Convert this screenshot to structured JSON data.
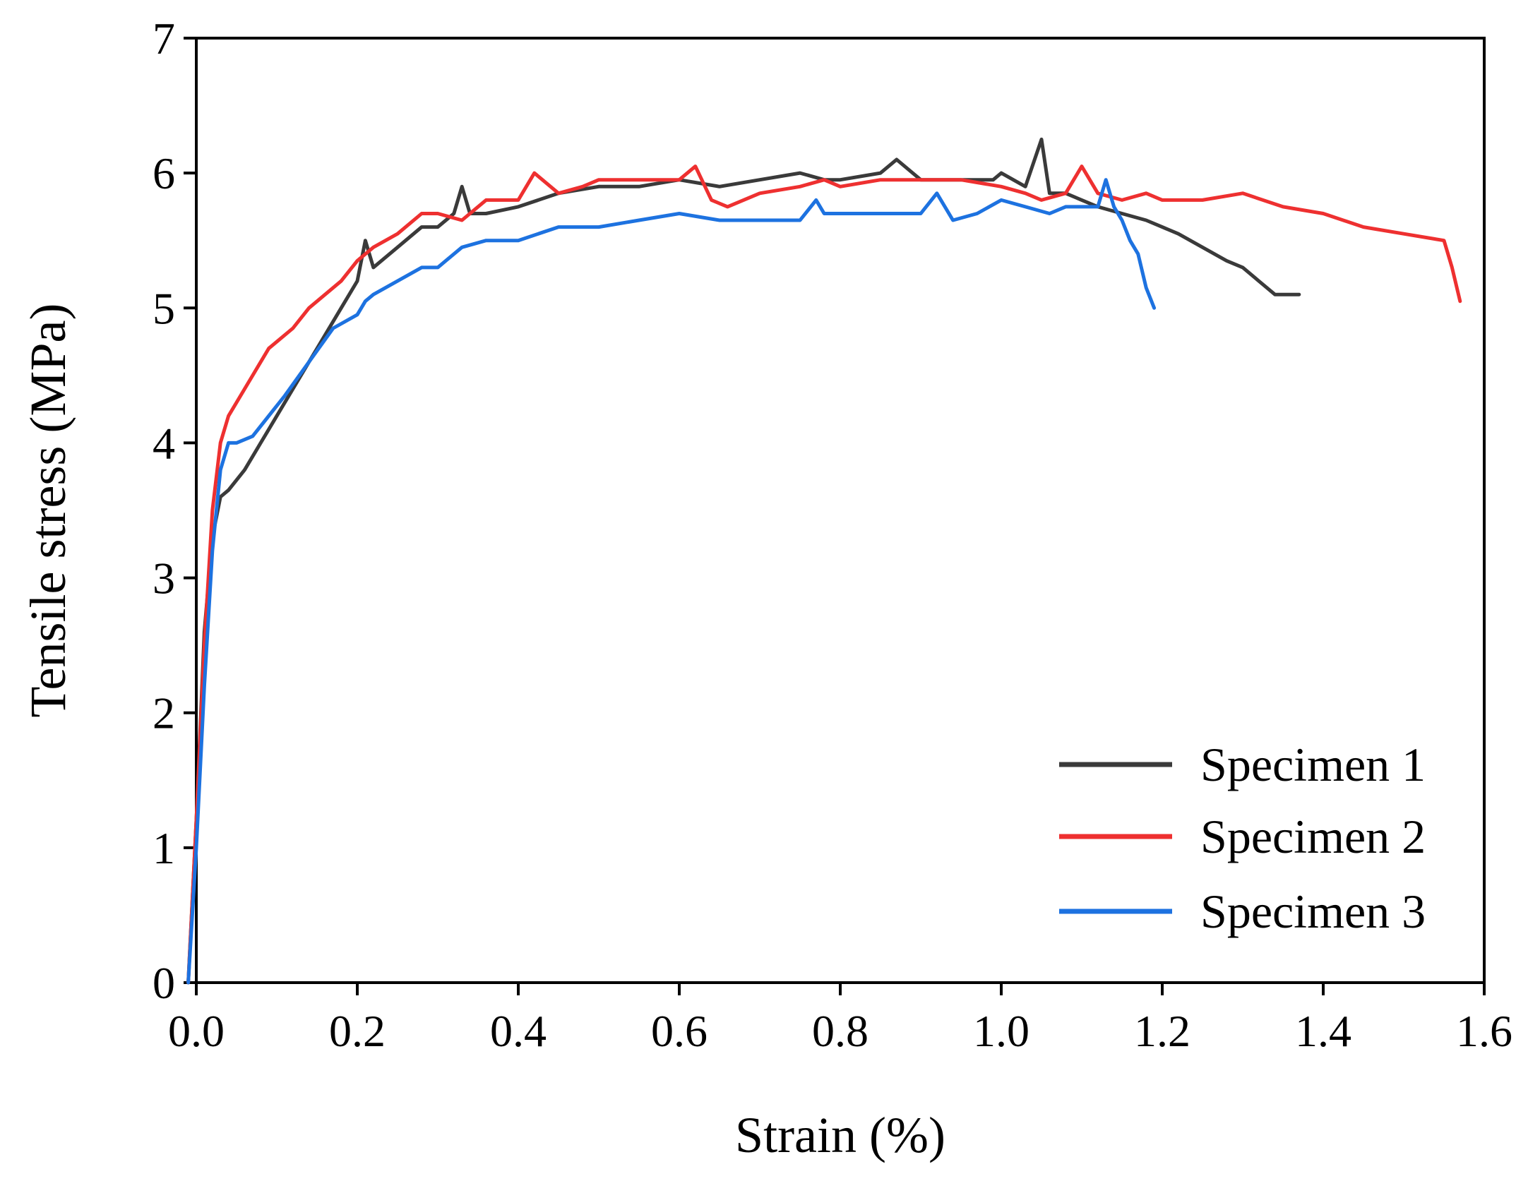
{
  "chart_data": {
    "type": "line",
    "title": "",
    "xlabel": "Strain (%)",
    "ylabel": "Tensile stress (MPa)",
    "xlim": [
      0.0,
      1.6
    ],
    "ylim": [
      0,
      7
    ],
    "xticks": [
      0.0,
      0.2,
      0.4,
      0.6,
      0.8,
      1.0,
      1.2,
      1.4,
      1.6
    ],
    "xtick_labels": [
      "0.0",
      "0.2",
      "0.4",
      "0.6",
      "0.8",
      "1.0",
      "1.2",
      "1.4",
      "1.6"
    ],
    "yticks": [
      0,
      1,
      2,
      3,
      4,
      5,
      6,
      7
    ],
    "ytick_labels": [
      "0",
      "1",
      "2",
      "3",
      "4",
      "5",
      "6",
      "7"
    ],
    "grid": false,
    "legend_position": "bottom-right",
    "series": [
      {
        "name": "Specimen 1",
        "color": "#3a3a3a",
        "x": [
          -0.01,
          0.0,
          0.01,
          0.02,
          0.03,
          0.04,
          0.06,
          0.08,
          0.1,
          0.12,
          0.15,
          0.18,
          0.2,
          0.21,
          0.22,
          0.25,
          0.28,
          0.3,
          0.32,
          0.33,
          0.34,
          0.36,
          0.4,
          0.45,
          0.5,
          0.55,
          0.6,
          0.65,
          0.7,
          0.75,
          0.78,
          0.8,
          0.85,
          0.87,
          0.9,
          0.95,
          0.99,
          1.0,
          1.03,
          1.05,
          1.06,
          1.08,
          1.1,
          1.12,
          1.15,
          1.18,
          1.2,
          1.22,
          1.25,
          1.28,
          1.3,
          1.32,
          1.34,
          1.36,
          1.37
        ],
        "y": [
          0,
          1.2,
          2.6,
          3.3,
          3.6,
          3.65,
          3.8,
          4.0,
          4.2,
          4.4,
          4.7,
          5.0,
          5.2,
          5.5,
          5.3,
          5.45,
          5.6,
          5.6,
          5.7,
          5.9,
          5.7,
          5.7,
          5.75,
          5.85,
          5.9,
          5.9,
          5.95,
          5.9,
          5.95,
          6.0,
          5.95,
          5.95,
          6.0,
          6.1,
          5.95,
          5.95,
          5.95,
          6.0,
          5.9,
          6.25,
          5.85,
          5.85,
          5.8,
          5.75,
          5.7,
          5.65,
          5.6,
          5.55,
          5.45,
          5.35,
          5.3,
          5.2,
          5.1,
          5.1,
          5.1
        ]
      },
      {
        "name": "Specimen 2",
        "color": "#ee3030",
        "x": [
          -0.01,
          0.0,
          0.01,
          0.02,
          0.03,
          0.04,
          0.05,
          0.07,
          0.09,
          0.1,
          0.12,
          0.14,
          0.16,
          0.18,
          0.2,
          0.22,
          0.25,
          0.28,
          0.3,
          0.33,
          0.36,
          0.4,
          0.42,
          0.43,
          0.45,
          0.48,
          0.5,
          0.55,
          0.6,
          0.62,
          0.64,
          0.66,
          0.7,
          0.75,
          0.78,
          0.8,
          0.85,
          0.9,
          0.95,
          1.0,
          1.03,
          1.05,
          1.08,
          1.1,
          1.12,
          1.15,
          1.18,
          1.2,
          1.25,
          1.3,
          1.35,
          1.4,
          1.45,
          1.5,
          1.55,
          1.56,
          1.57
        ],
        "y": [
          0,
          1.2,
          2.5,
          3.5,
          4.0,
          4.2,
          4.3,
          4.5,
          4.7,
          4.75,
          4.85,
          5.0,
          5.1,
          5.2,
          5.35,
          5.45,
          5.55,
          5.7,
          5.7,
          5.65,
          5.8,
          5.8,
          6.0,
          5.95,
          5.85,
          5.9,
          5.95,
          5.95,
          5.95,
          6.05,
          5.8,
          5.75,
          5.85,
          5.9,
          5.95,
          5.9,
          5.95,
          5.95,
          5.95,
          5.9,
          5.85,
          5.8,
          5.85,
          6.05,
          5.85,
          5.8,
          5.85,
          5.8,
          5.8,
          5.85,
          5.75,
          5.7,
          5.6,
          5.55,
          5.5,
          5.3,
          5.05
        ]
      },
      {
        "name": "Specimen 3",
        "color": "#1d72e0",
        "x": [
          -0.01,
          0.0,
          0.01,
          0.02,
          0.03,
          0.04,
          0.05,
          0.07,
          0.09,
          0.11,
          0.14,
          0.17,
          0.2,
          0.21,
          0.22,
          0.25,
          0.28,
          0.3,
          0.33,
          0.36,
          0.4,
          0.45,
          0.5,
          0.55,
          0.6,
          0.65,
          0.7,
          0.75,
          0.77,
          0.78,
          0.8,
          0.85,
          0.9,
          0.92,
          0.94,
          0.97,
          1.0,
          1.03,
          1.06,
          1.08,
          1.1,
          1.12,
          1.13,
          1.14,
          1.15,
          1.16,
          1.17,
          1.18,
          1.19
        ],
        "y": [
          0,
          1.0,
          2.2,
          3.2,
          3.8,
          4.0,
          4.0,
          4.05,
          4.2,
          4.35,
          4.6,
          4.85,
          4.95,
          5.05,
          5.1,
          5.2,
          5.3,
          5.3,
          5.45,
          5.5,
          5.5,
          5.6,
          5.6,
          5.65,
          5.7,
          5.65,
          5.65,
          5.65,
          5.8,
          5.7,
          5.7,
          5.7,
          5.7,
          5.85,
          5.65,
          5.7,
          5.8,
          5.75,
          5.7,
          5.75,
          5.75,
          5.75,
          5.95,
          5.75,
          5.65,
          5.5,
          5.4,
          5.15,
          5.0
        ]
      }
    ]
  }
}
